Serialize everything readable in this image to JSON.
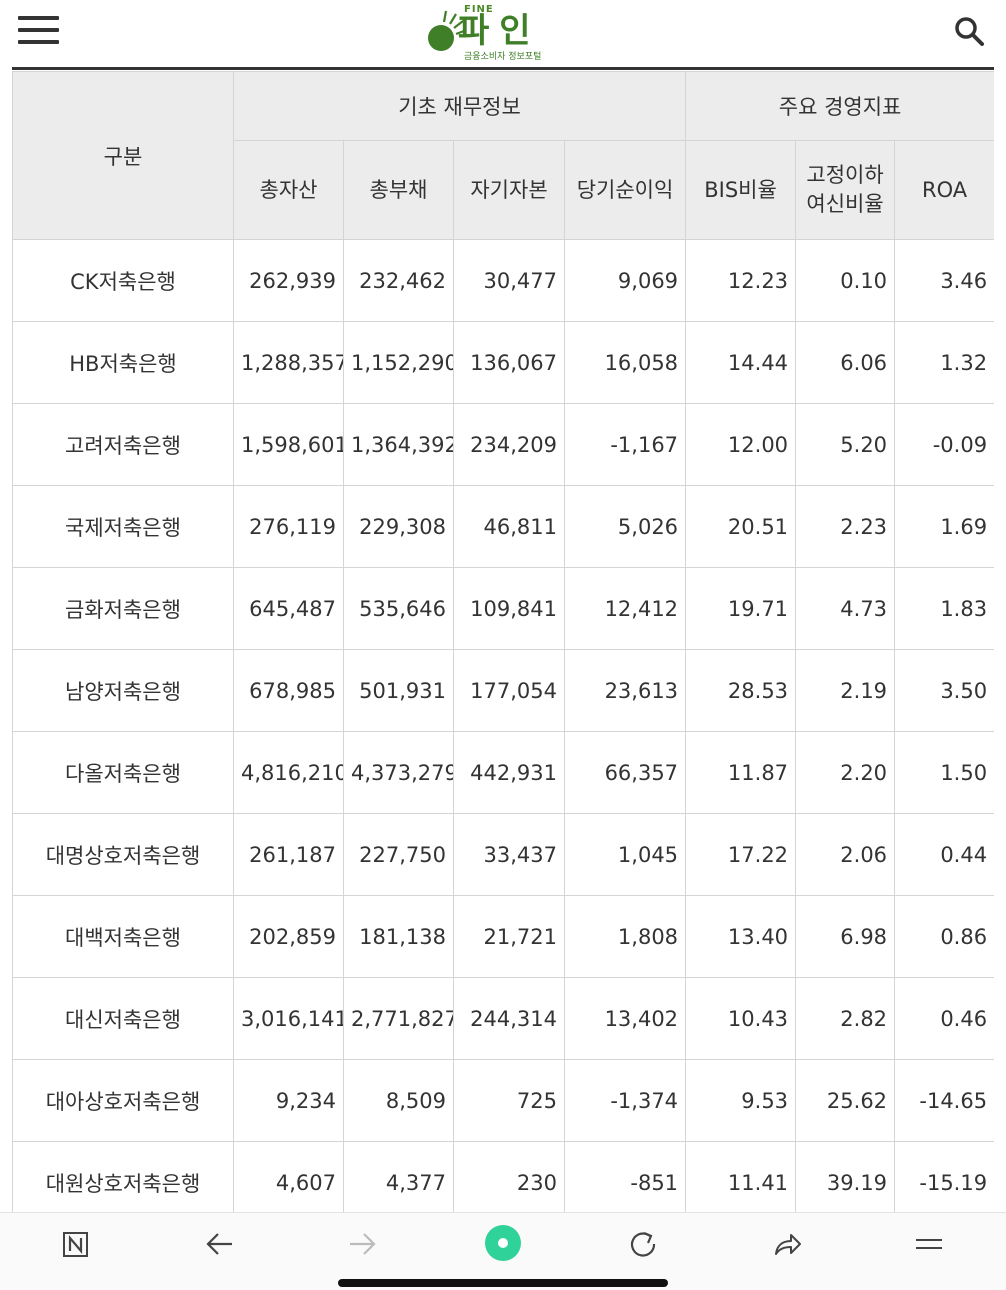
{
  "header": {
    "logo_tag": "FINE",
    "logo_name": "파인",
    "logo_sub": "금융소비자 정보포털"
  },
  "colors": {
    "brand_green": "#3f7f28",
    "header_bg": "#ececec",
    "border": "#d4d4d4",
    "whale_green": "#2fd39a"
  },
  "icons": {
    "menu": "hamburger-menu-icon",
    "search": "search-icon",
    "naver": "naver-n-icon",
    "back": "arrow-left-icon",
    "forward": "arrow-right-icon",
    "whale": "whale-browser-icon",
    "reload": "reload-icon",
    "share": "share-icon",
    "bottom_menu": "menu-lines-icon"
  },
  "table": {
    "group_label": "구분",
    "group_basic": "기초 재무정보",
    "group_mgmt": "주요 경영지표",
    "columns": [
      "총자산",
      "총부채",
      "자기자본",
      "당기순이익",
      "BIS비율",
      "고정이하",
      "여신비율",
      "ROA"
    ],
    "rows": [
      {
        "bank": "CK저축은행",
        "values": [
          "262,939",
          "232,462",
          "30,477",
          "9,069",
          "12.23",
          "0.10",
          "3.46"
        ]
      },
      {
        "bank": "HB저축은행",
        "values": [
          "1,288,357",
          "1,152,290",
          "136,067",
          "16,058",
          "14.44",
          "6.06",
          "1.32"
        ]
      },
      {
        "bank": "고려저축은행",
        "values": [
          "1,598,601",
          "1,364,392",
          "234,209",
          "-1,167",
          "12.00",
          "5.20",
          "-0.09"
        ]
      },
      {
        "bank": "국제저축은행",
        "values": [
          "276,119",
          "229,308",
          "46,811",
          "5,026",
          "20.51",
          "2.23",
          "1.69"
        ]
      },
      {
        "bank": "금화저축은행",
        "values": [
          "645,487",
          "535,646",
          "109,841",
          "12,412",
          "19.71",
          "4.73",
          "1.83"
        ]
      },
      {
        "bank": "남양저축은행",
        "values": [
          "678,985",
          "501,931",
          "177,054",
          "23,613",
          "28.53",
          "2.19",
          "3.50"
        ]
      },
      {
        "bank": "다올저축은행",
        "values": [
          "4,816,210",
          "4,373,279",
          "442,931",
          "66,357",
          "11.87",
          "2.20",
          "1.50"
        ]
      },
      {
        "bank": "대명상호저축은행",
        "values": [
          "261,187",
          "227,750",
          "33,437",
          "1,045",
          "17.22",
          "2.06",
          "0.44"
        ]
      },
      {
        "bank": "대백저축은행",
        "values": [
          "202,859",
          "181,138",
          "21,721",
          "1,808",
          "13.40",
          "6.98",
          "0.86"
        ]
      },
      {
        "bank": "대신저축은행",
        "values": [
          "3,016,141",
          "2,771,827",
          "244,314",
          "13,402",
          "10.43",
          "2.82",
          "0.46"
        ]
      },
      {
        "bank": "대아상호저축은행",
        "values": [
          "9,234",
          "8,509",
          "725",
          "-1,374",
          "9.53",
          "25.62",
          "-14.65"
        ]
      },
      {
        "bank": "대원상호저축은행",
        "values": [
          "4,607",
          "4,377",
          "230",
          "-851",
          "11.41",
          "39.19",
          "-15.19"
        ]
      }
    ]
  }
}
